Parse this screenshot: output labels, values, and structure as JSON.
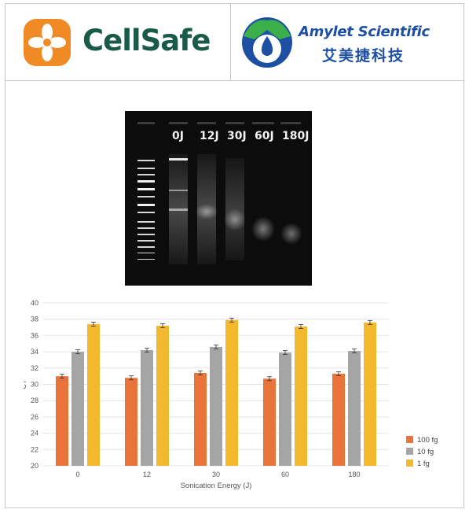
{
  "header": {
    "cellsafe_logo": {
      "text": "CellSafe",
      "icon": "orange-flower-leaf-icon",
      "color": "#1a5a48",
      "accent": "#f08a24"
    },
    "amylet_logo": {
      "text": "Amylet Scientific",
      "text_cn": "艾美捷科技",
      "icon": "green-blue-drop-icon",
      "color": "#1d4fa3",
      "accent": "#3bb04a"
    }
  },
  "gel_image": {
    "lane_labels": [
      "0J",
      "12J",
      "30J",
      "60J",
      "180J"
    ],
    "background": "#0c0c0c"
  },
  "chart_data": {
    "type": "bar",
    "categories": [
      "0",
      "12",
      "30",
      "60",
      "180"
    ],
    "series": [
      {
        "name": "100 fg",
        "color": "#e8743b",
        "values": [
          31.0,
          30.8,
          31.4,
          30.7,
          31.3
        ]
      },
      {
        "name": "10 fg",
        "color": "#a5a5a5",
        "values": [
          34.0,
          34.2,
          34.6,
          33.9,
          34.1
        ]
      },
      {
        "name": "1 fg",
        "color": "#f2b82e",
        "values": [
          37.4,
          37.2,
          37.9,
          37.1,
          37.6
        ]
      }
    ],
    "error_bars": true,
    "xlabel": "Sonication Energy (J)",
    "ylabel": "CT",
    "ylim": [
      20,
      40
    ],
    "yticks": [
      20,
      22,
      24,
      26,
      28,
      30,
      32,
      34,
      36,
      38,
      40
    ],
    "grid": true,
    "legend_position": "bottom-right"
  }
}
